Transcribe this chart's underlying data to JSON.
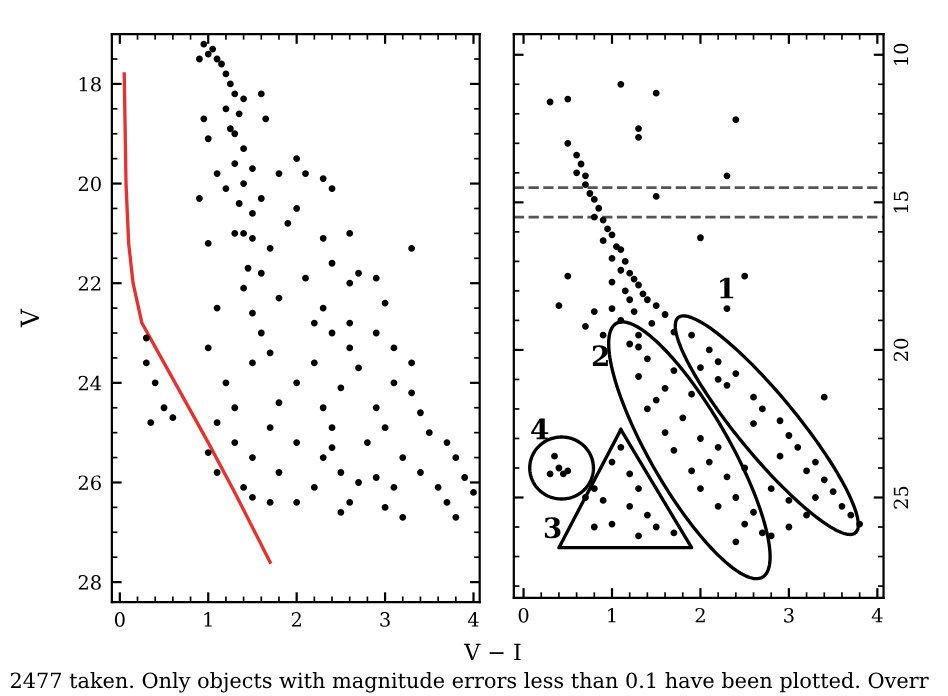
{
  "chart_data": [
    {
      "type": "scatter",
      "ylabel": "V",
      "xlabel": "V − I",
      "xlim": [
        -0.09,
        4.07
      ],
      "ylim": [
        28.4,
        17.0
      ],
      "xticks": [
        0,
        1,
        2,
        3,
        4
      ],
      "yticks": [
        18,
        20,
        22,
        24,
        26,
        28
      ],
      "marker": "circle",
      "grid": false,
      "legend": false,
      "annotations": [
        "2477 taken. Only objects with magnitude errors less than 0.1 have been plotted. Overr"
      ],
      "series": [
        {
          "color": "#000000",
          "x": [
            0.95,
            1.0,
            1.05,
            1.1,
            1.15,
            0.9,
            1.2,
            1.25,
            1.3,
            1.4,
            1.6,
            1.2,
            1.35,
            0.95,
            1.25,
            1.3,
            1.65,
            1.0,
            1.4,
            1.3,
            1.1,
            1.5,
            2.0,
            1.8,
            2.1,
            2.3,
            1.4,
            1.2,
            1.6,
            0.9,
            1.35,
            1.5,
            2.0,
            2.4,
            1.9,
            1.4,
            1.3,
            1.5,
            1.0,
            2.3,
            2.6,
            1.7,
            3.3,
            2.4,
            1.45,
            1.6,
            2.1,
            2.7,
            2.9,
            1.4,
            2.6,
            1.8,
            1.1,
            2.3,
            3.0,
            1.5,
            2.2,
            2.6,
            1.6,
            2.4,
            2.9,
            0.3,
            1.0,
            1.7,
            2.6,
            3.1,
            0.3,
            1.5,
            2.2,
            2.7,
            3.3,
            0.4,
            1.2,
            2.0,
            2.5,
            3.1,
            3.3,
            0.5,
            1.3,
            1.8,
            2.3,
            2.9,
            3.4,
            0.35,
            0.6,
            1.1,
            1.7,
            2.4,
            3.0,
            3.5,
            1.3,
            2.0,
            2.4,
            2.8,
            3.7,
            1.0,
            1.5,
            2.3,
            3.2,
            3.8,
            1.1,
            1.8,
            2.5,
            2.9,
            3.4,
            3.9,
            1.4,
            2.2,
            2.7,
            3.1,
            3.6,
            1.5,
            2.0,
            2.6,
            3.0,
            3.7,
            4.0,
            3.2,
            3.8,
            2.5,
            1.7
          ],
          "values": [
            17.2,
            17.4,
            17.3,
            17.5,
            17.6,
            17.5,
            17.8,
            18.0,
            18.2,
            18.3,
            18.2,
            18.5,
            18.6,
            18.7,
            18.9,
            19.0,
            18.7,
            19.1,
            19.3,
            19.6,
            19.8,
            19.7,
            19.5,
            19.8,
            19.8,
            19.9,
            20.0,
            20.1,
            20.3,
            20.3,
            20.4,
            20.6,
            20.5,
            20.1,
            20.8,
            21.0,
            21.0,
            21.1,
            21.2,
            21.1,
            21.0,
            21.3,
            21.3,
            21.6,
            21.7,
            21.8,
            21.9,
            21.8,
            21.9,
            22.1,
            22.0,
            22.3,
            22.5,
            22.5,
            22.4,
            22.6,
            22.8,
            22.8,
            23.0,
            23.0,
            23.0,
            23.1,
            23.3,
            23.4,
            23.3,
            23.3,
            23.6,
            23.6,
            23.6,
            23.7,
            23.6,
            24.0,
            24.0,
            24.0,
            24.1,
            24.0,
            24.2,
            24.5,
            24.5,
            24.4,
            24.5,
            24.5,
            24.6,
            24.8,
            24.7,
            24.8,
            24.9,
            24.9,
            24.9,
            25.0,
            25.2,
            25.2,
            25.3,
            25.2,
            25.2,
            25.4,
            25.5,
            25.5,
            25.5,
            25.5,
            25.8,
            25.8,
            25.8,
            25.9,
            25.8,
            25.9,
            26.1,
            26.1,
            26.0,
            26.1,
            26.1,
            26.3,
            26.4,
            26.4,
            26.5,
            26.4,
            26.2,
            26.7,
            26.7,
            26.6,
            26.4
          ]
        },
        {
          "type": "line",
          "marker": "none",
          "color": "#e8312f",
          "x": [
            0.05,
            0.07,
            0.1,
            0.15,
            0.25,
            0.5,
            1.0,
            1.3,
            1.7
          ],
          "values": [
            17.8,
            20.0,
            21.2,
            22.0,
            22.8,
            23.6,
            25.2,
            26.2,
            27.6
          ]
        }
      ]
    },
    {
      "type": "scatter",
      "xlim": [
        -0.11,
        4.07
      ],
      "ylim": [
        28.4,
        9.3
      ],
      "xticks": [
        0,
        1,
        2,
        3,
        4
      ],
      "yticks": [
        10,
        15,
        20,
        25
      ],
      "marker": "circle",
      "grid": false,
      "legend": false,
      "ref_lines": [
        {
          "axis": "y",
          "value": 14.5,
          "color": "#555555",
          "line_style": "dashed"
        },
        {
          "axis": "y",
          "value": 15.5,
          "color": "#555555",
          "line_style": "dashed"
        }
      ],
      "annotations": [
        "1",
        "2",
        "3",
        "4"
      ],
      "series": [
        {
          "color": "#000000",
          "x": [
            0.3,
            0.5,
            0.6,
            0.65,
            0.6,
            0.7,
            0.7,
            0.75,
            0.8,
            0.85,
            0.8,
            0.9,
            0.95,
            1.0,
            0.9,
            1.05,
            1.1,
            1.0,
            1.15,
            1.1,
            1.2,
            1.25,
            1.0,
            1.3,
            1.15,
            1.35,
            1.2,
            1.4,
            1.5,
            1.0,
            1.25,
            1.6,
            0.8,
            1.1,
            0.7,
            1.45,
            1.7,
            0.9,
            1.3,
            1.3,
            1.3,
            0.5,
            1.1,
            1.5,
            2.4,
            2.3,
            1.5,
            2.0,
            2.5,
            2.3,
            0.5,
            0.4,
            3.4,
            0.8,
            0.7,
            1.9,
            2.1,
            2.2,
            2.4,
            2.3,
            2.6,
            2.7,
            2.9,
            2.6,
            3.0,
            3.1,
            2.9,
            3.3,
            3.2,
            3.4,
            3.5,
            3.6,
            3.7,
            3.8,
            3.3,
            2.2,
            2.0,
            1.2,
            1.4,
            1.3,
            1.6,
            1.5,
            1.4,
            1.8,
            1.6,
            2.0,
            1.7,
            2.1,
            1.9,
            2.3,
            2.0,
            2.4,
            2.2,
            2.6,
            2.5,
            2.7,
            2.4,
            2.8,
            3.0,
            3.2,
            3.0,
            2.8,
            2.5,
            2.2,
            1.3,
            1.9,
            1.7,
            1.1,
            1.0,
            1.2,
            1.3,
            0.9,
            1.2,
            1.4,
            1.0,
            1.5,
            1.7,
            1.3,
            0.8,
            0.35,
            0.4,
            0.45,
            0.5,
            0.3
          ],
          "values": [
            11.6,
            13.0,
            13.4,
            13.7,
            14.0,
            14.1,
            14.4,
            14.7,
            14.9,
            15.2,
            15.5,
            15.6,
            15.9,
            16.1,
            16.3,
            16.5,
            16.6,
            16.9,
            17.0,
            17.3,
            17.4,
            17.6,
            17.7,
            17.8,
            18.0,
            18.1,
            18.3,
            18.3,
            18.5,
            18.6,
            18.7,
            18.8,
            18.7,
            19.0,
            19.2,
            19.1,
            19.4,
            19.5,
            19.5,
            12.5,
            12.8,
            11.5,
            11.0,
            11.3,
            12.2,
            14.1,
            14.8,
            16.2,
            17.5,
            18.6,
            17.5,
            18.5,
            21.6,
            24.7,
            25.0,
            19.5,
            20.0,
            20.4,
            20.8,
            21.2,
            21.6,
            22.0,
            22.4,
            22.5,
            22.9,
            23.3,
            23.6,
            23.8,
            24.1,
            24.4,
            24.8,
            25.3,
            25.6,
            25.9,
            25.0,
            21.0,
            20.6,
            19.8,
            20.3,
            20.9,
            21.3,
            21.7,
            22.0,
            22.3,
            22.8,
            23.0,
            23.4,
            23.8,
            24.1,
            24.3,
            24.7,
            25.0,
            25.3,
            25.5,
            25.9,
            26.2,
            26.5,
            26.3,
            26.0,
            25.6,
            25.1,
            24.7,
            24.0,
            23.3,
            19.9,
            21.5,
            20.7,
            23.3,
            23.8,
            24.2,
            24.7,
            25.1,
            25.3,
            25.6,
            25.9,
            26.0,
            26.2,
            26.3,
            26.0,
            23.6,
            24.0,
            24.2,
            24.1,
            24.2
          ]
        }
      ]
    }
  ]
}
